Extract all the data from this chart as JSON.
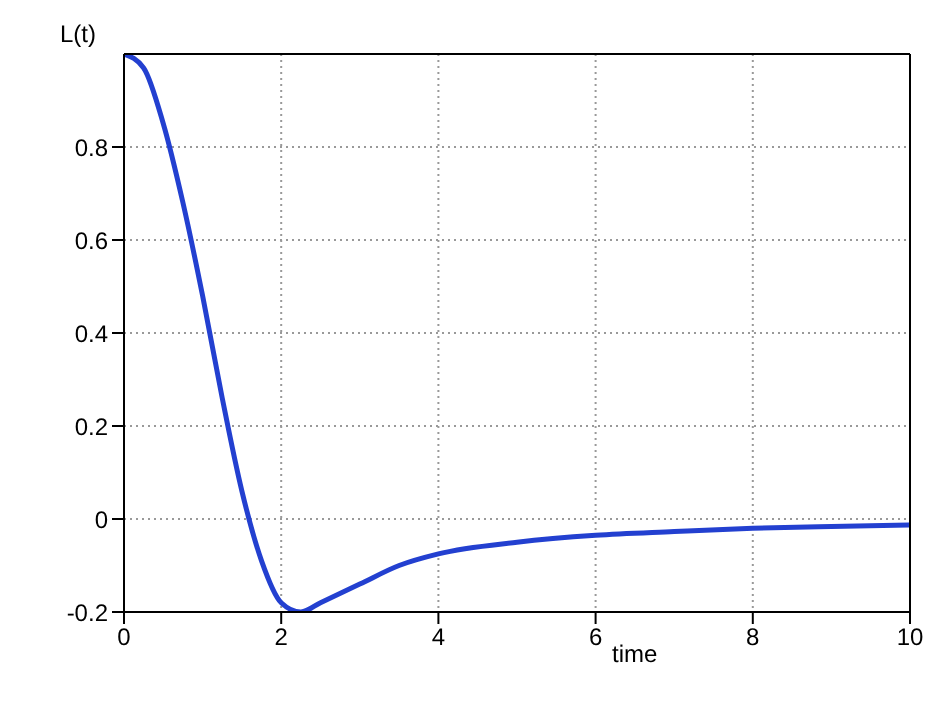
{
  "chart_data": {
    "type": "line",
    "xlabel": "time",
    "ylabel": "L(t)",
    "x": [
      0,
      0.25,
      0.5,
      0.75,
      1,
      1.25,
      1.5,
      1.75,
      2,
      2.25,
      2.5,
      3,
      3.5,
      4,
      5,
      6,
      7,
      8,
      9,
      10
    ],
    "series": [
      {
        "color": "#2340d0",
        "values": [
          1,
          0.97,
          0.85,
          0.68,
          0.48,
          0.26,
          0.06,
          -0.09,
          -0.18,
          -0.2,
          -0.18,
          -0.14,
          -0.1,
          -0.075,
          -0.05,
          -0.035,
          -0.027,
          -0.02,
          -0.016,
          -0.013
        ]
      }
    ],
    "xlim": [
      0,
      10
    ],
    "xticks": [
      0,
      2,
      4,
      6,
      8,
      10
    ],
    "ylim": [
      -0.2,
      1
    ],
    "yticks": [
      -0.2,
      0,
      0.2,
      0.4,
      0.6,
      0.8
    ],
    "grid": true,
    "marker": "none",
    "line_style": "solid",
    "legend": false
  }
}
